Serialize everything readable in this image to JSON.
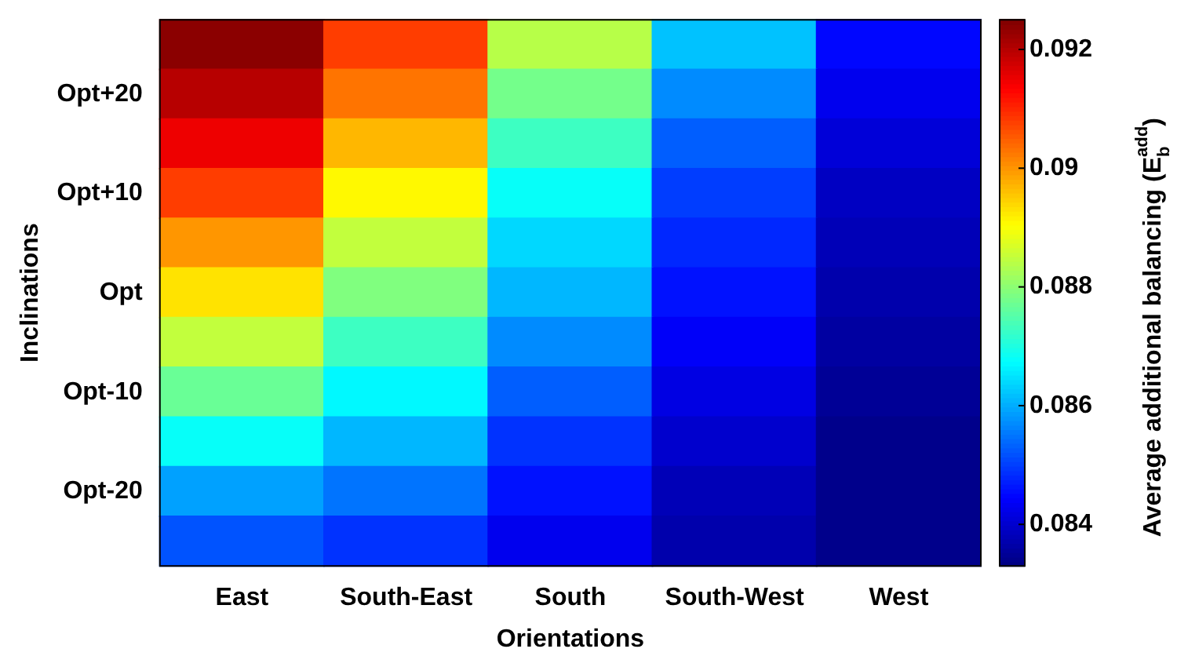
{
  "chart_data": {
    "type": "heatmap",
    "xlabel": "Orientations",
    "ylabel": "Inclinations",
    "clabel": "Average additional balancing (E$_{b}$$^{add}$)",
    "categories": [
      "East",
      "South-East",
      "South",
      "South-West",
      "West"
    ],
    "y_categories": [
      null,
      "Opt+20",
      null,
      "Opt+10",
      null,
      "Opt",
      null,
      "Opt-10",
      null,
      "Opt-20",
      null
    ],
    "cells": [
      [
        0.0924,
        0.0908,
        0.0884,
        0.0862,
        0.0845
      ],
      [
        0.092,
        0.0903,
        0.0878,
        0.0857,
        0.0843
      ],
      [
        0.0915,
        0.0897,
        0.0873,
        0.0853,
        0.0841
      ],
      [
        0.0908,
        0.0891,
        0.0868,
        0.085,
        0.0839
      ],
      [
        0.09,
        0.0885,
        0.0864,
        0.0848,
        0.0838
      ],
      [
        0.0893,
        0.0879,
        0.0861,
        0.0846,
        0.0837
      ],
      [
        0.0885,
        0.0873,
        0.0857,
        0.0844,
        0.0836
      ],
      [
        0.0877,
        0.0867,
        0.0853,
        0.0842,
        0.0835
      ],
      [
        0.0868,
        0.0861,
        0.0849,
        0.084,
        0.0834
      ],
      [
        0.0859,
        0.0855,
        0.0846,
        0.0838,
        0.0834
      ],
      [
        0.0852,
        0.0849,
        0.0843,
        0.0837,
        0.0834
      ]
    ],
    "clim": [
      0.0833,
      0.0925
    ],
    "cticks": [
      0.084,
      0.086,
      0.088,
      0.09,
      0.092
    ]
  }
}
